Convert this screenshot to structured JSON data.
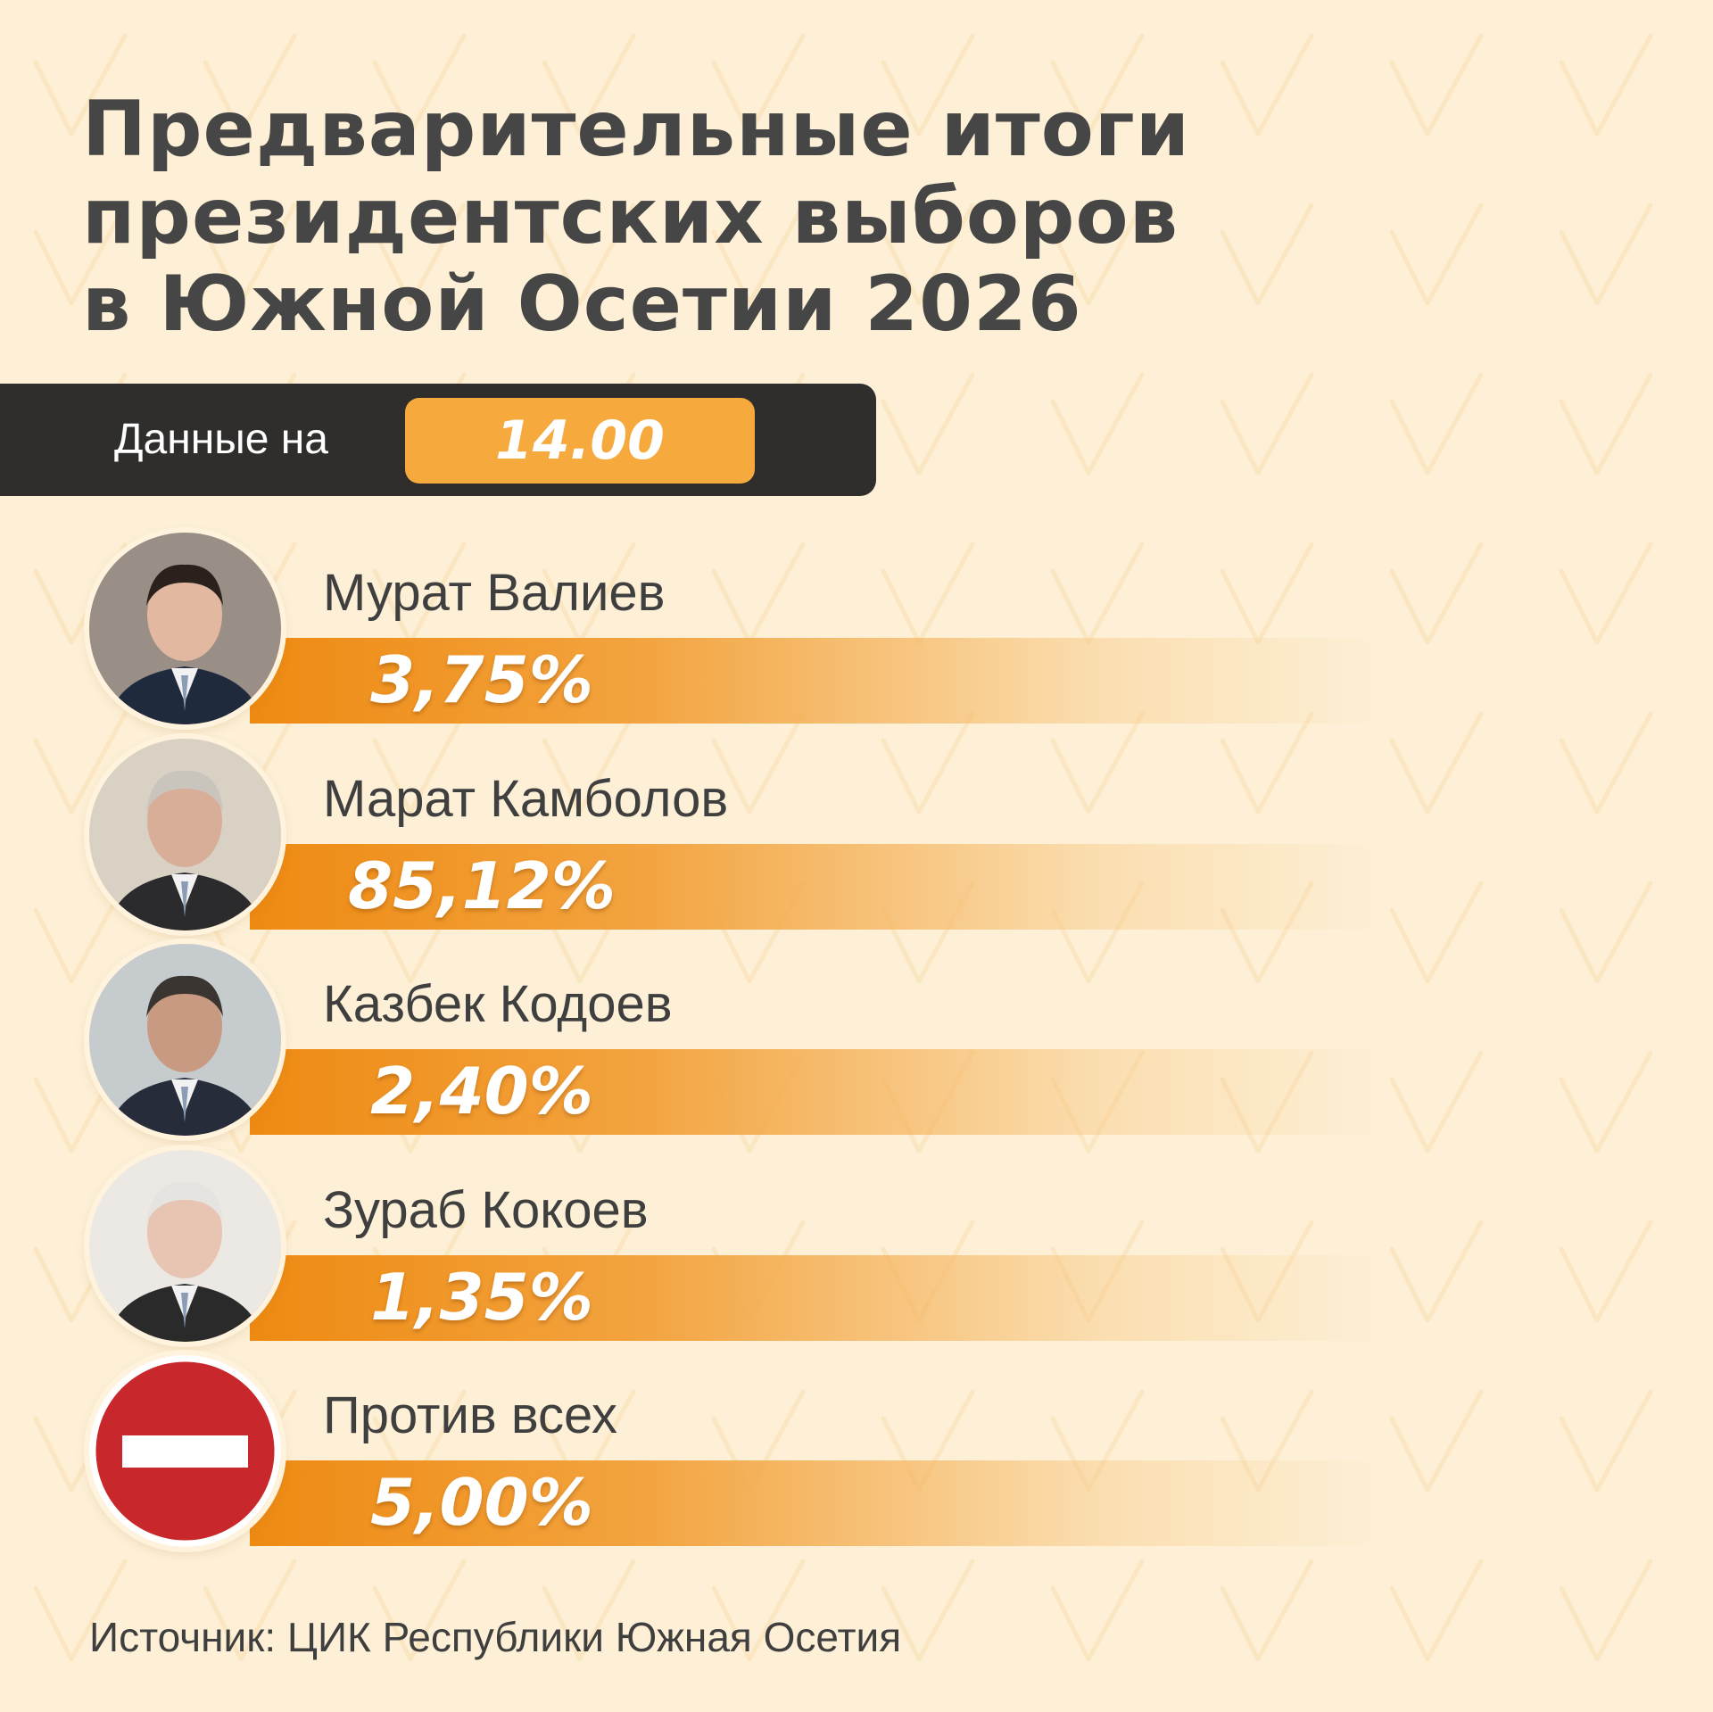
{
  "title_lines": [
    "Предварительные итоги",
    "президентских выборов",
    "в Южной Осетии 2026"
  ],
  "date_label": "Данные на",
  "date_value": "14.00",
  "source": "Источник: ЦИК Республики Южная Осетия",
  "colors": {
    "background": "#fdf0d6",
    "bar_orange": "#ee8a12",
    "pill_orange": "#f6a93d",
    "dark_bar": "#2f2e2c",
    "title_text": "#464646",
    "no_entry_red": "#c8272b"
  },
  "chart_data": {
    "type": "bar",
    "title": "Предварительные итоги президентских выборов в Южной Осетии 2026",
    "categories": [
      "Мурат Валиев",
      "Марат Камболов",
      "Казбек Кодоев",
      "Зураб Кокоев",
      "Против всех"
    ],
    "values": [
      3.75,
      85.12,
      2.4,
      1.35,
      5.0
    ],
    "value_labels": [
      "3,75%",
      "85,12%",
      "2,40%",
      "1,35%",
      "5,00%"
    ],
    "avatars": [
      "portrait-photo",
      "portrait-photo",
      "portrait-photo",
      "portrait-photo",
      "no-entry-sign"
    ],
    "unit": "%"
  }
}
